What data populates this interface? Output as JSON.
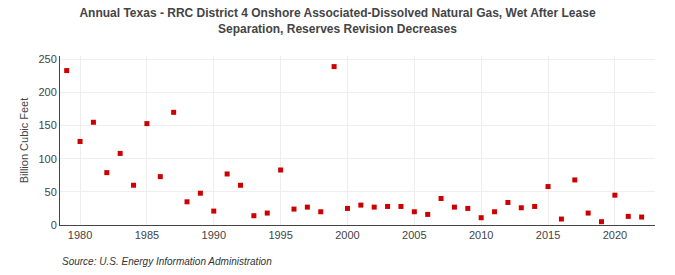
{
  "chart_data": {
    "type": "scatter",
    "title": "Annual Texas - RRC District 4 Onshore Associated-Dissolved Natural Gas, Wet After Lease\nSeparation, Reserves Revision Decreases",
    "ylabel": "Billion Cubic Feet",
    "source": "Source: U.S. Energy Information Administration",
    "color": "#cc0000",
    "marker": "square",
    "grid": true,
    "x": [
      1979,
      1980,
      1981,
      1982,
      1983,
      1984,
      1985,
      1986,
      1987,
      1988,
      1989,
      1990,
      1991,
      1992,
      1993,
      1994,
      1995,
      1996,
      1997,
      1998,
      1999,
      2000,
      2001,
      2002,
      2003,
      2004,
      2005,
      2006,
      2007,
      2008,
      2009,
      2010,
      2011,
      2012,
      2013,
      2014,
      2015,
      2016,
      2017,
      2018,
      2019,
      2020,
      2021,
      2022
    ],
    "values": [
      233,
      126,
      155,
      79,
      108,
      60,
      153,
      73,
      170,
      35,
      48,
      21,
      77,
      60,
      14,
      18,
      83,
      24,
      27,
      20,
      239,
      25,
      30,
      27,
      28,
      28,
      20,
      16,
      40,
      27,
      25,
      11,
      20,
      34,
      26,
      28,
      58,
      9,
      68,
      18,
      5,
      45,
      13,
      12
    ],
    "xlim": [
      1978.5,
      2023
    ],
    "ylim": [
      0,
      255
    ],
    "xticks": [
      1980,
      1985,
      1990,
      1995,
      2000,
      2005,
      2010,
      2015,
      2020
    ],
    "yticks": [
      0,
      50,
      100,
      150,
      200,
      250
    ]
  }
}
